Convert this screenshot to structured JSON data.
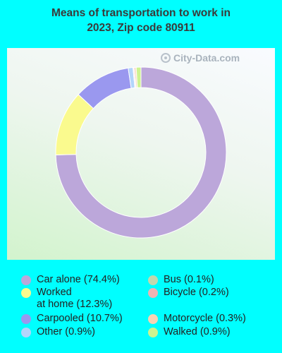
{
  "title": "Means of transportation to work in\n2023, Zip code 80911",
  "watermark": "City-Data.com",
  "chart_data": {
    "type": "pie",
    "subtype": "donut",
    "title": "Means of transportation to work in 2023, Zip code 80911",
    "slices": [
      {
        "label": "Car alone (74.4%)",
        "value": 74.4,
        "color": "#bca7da"
      },
      {
        "label": "Worked\nat home (12.3%)",
        "value": 12.3,
        "color": "#fafa8e"
      },
      {
        "label": "Carpooled (10.7%)",
        "value": 10.7,
        "color": "#9a98ef"
      },
      {
        "label": "Other (0.9%)",
        "value": 0.9,
        "color": "#b2d5fb"
      },
      {
        "label": "Bus (0.1%)",
        "value": 0.1,
        "color": "#c2d8ae"
      },
      {
        "label": "Bicycle (0.2%)",
        "value": 0.2,
        "color": "#efb3b3"
      },
      {
        "label": "Motorcycle (0.3%)",
        "value": 0.3,
        "color": "#f8d3b3"
      },
      {
        "label": "Walked (0.9%)",
        "value": 0.9,
        "color": "#cdf390"
      }
    ],
    "legend": "bottom"
  }
}
